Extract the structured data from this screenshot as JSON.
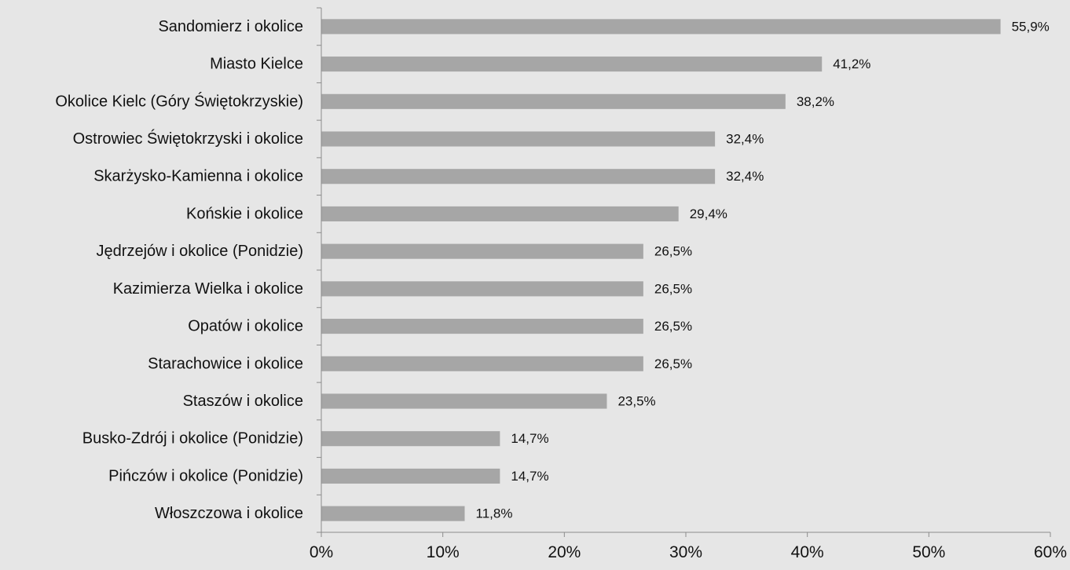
{
  "chart_data": {
    "type": "bar",
    "orientation": "horizontal",
    "categories": [
      "Sandomierz i okolice",
      "Miasto Kielce",
      "Okolice Kielc (Góry Świętokrzyskie)",
      "Ostrowiec Świętokrzyski i okolice",
      "Skarżysko-Kamienna i okolice",
      "Końskie i okolice",
      "Jędrzejów i okolice (Ponidzie)",
      "Kazimierza Wielka i okolice",
      "Opatów i okolice",
      "Starachowice i okolice",
      "Staszów i okolice",
      "Busko-Zdrój i okolice (Ponidzie)",
      "Pińczów i okolice (Ponidzie)",
      "Włoszczowa i okolice"
    ],
    "values": [
      55.9,
      41.2,
      38.2,
      32.4,
      32.4,
      29.4,
      26.5,
      26.5,
      26.5,
      26.5,
      23.5,
      14.7,
      14.7,
      11.8
    ],
    "value_labels": [
      "55,9%",
      "41,2%",
      "38,2%",
      "32,4%",
      "32,4%",
      "29,4%",
      "26,5%",
      "26,5%",
      "26,5%",
      "26,5%",
      "23,5%",
      "14,7%",
      "14,7%",
      "11,8%"
    ],
    "xlim": [
      0,
      60
    ],
    "xticks": [
      0,
      10,
      20,
      30,
      40,
      50,
      60
    ],
    "xtick_labels": [
      "0%",
      "10%",
      "20%",
      "30%",
      "40%",
      "50%",
      "60%"
    ],
    "grid": false,
    "legend": "none",
    "colors": {
      "bar": "#a6a6a6",
      "axis": "#8c8c8c",
      "background": "#e6e6e6",
      "text": "#111111"
    }
  }
}
